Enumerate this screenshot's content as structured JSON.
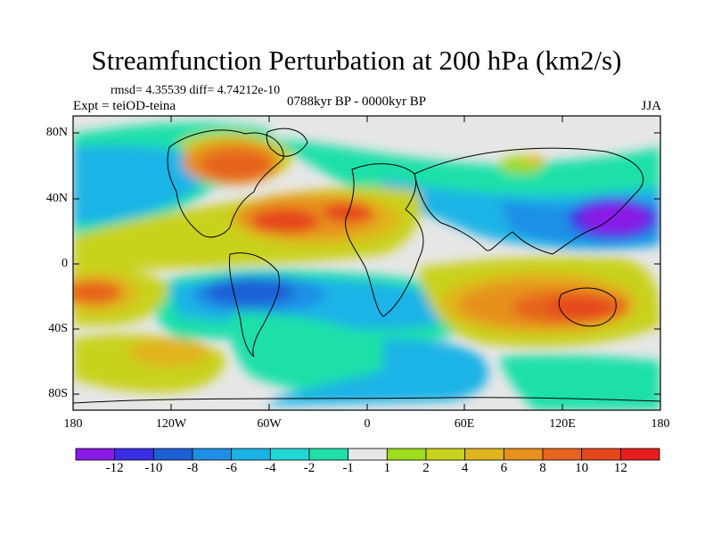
{
  "title": "Streamfunction Perturbation at 200 hPa (km2/s)",
  "stats": "rmsd= 4.35539 diff= 4.74212e-10",
  "expt": "Expt = teiOD-teina",
  "period": "0788kyr BP - 0000kyr BP",
  "season": "JJA",
  "y_axis_labels": [
    "80N",
    "40N",
    "0",
    "40S",
    "80S"
  ],
  "x_axis_labels": [
    "180",
    "120W",
    "60W",
    "0",
    "60E",
    "120E",
    "180"
  ],
  "colorbar": {
    "labels": [
      "-12",
      "-10",
      "-8",
      "-6",
      "-4",
      "-2",
      "-1",
      "1",
      "2",
      "4",
      "6",
      "8",
      "10",
      "12"
    ],
    "colors": [
      "#8a1ae6",
      "#3a2ee6",
      "#1f5fd6",
      "#1f8fe6",
      "#1bb3e6",
      "#23d6d6",
      "#1fe0a8",
      "#e6e6e6",
      "#9edc1e",
      "#c8d21e",
      "#e0b41e",
      "#e6901e",
      "#e6641e",
      "#e6461e",
      "#e61e1e"
    ]
  }
}
